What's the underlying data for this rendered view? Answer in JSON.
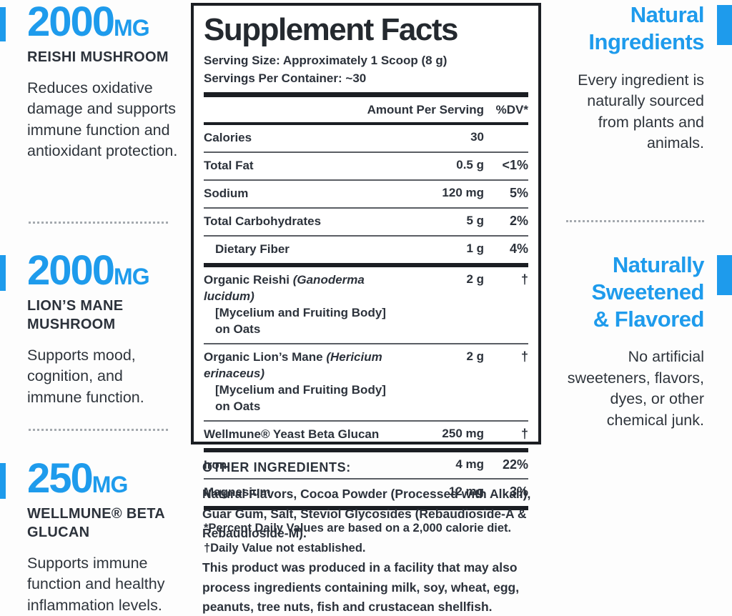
{
  "colors": {
    "accent_blue": "#1e9bec",
    "text_dark": "#2c323b",
    "panel_border": "#1b1e23"
  },
  "left_column": {
    "sections": [
      {
        "value": "2000",
        "unit": "MG",
        "title": "REISHI MUSHROOM",
        "body": "Reduces oxidative damage and supports immune function and antioxidant protection."
      },
      {
        "value": "2000",
        "unit": "MG",
        "title": "LION’S MANE MUSHROOM",
        "body": "Supports mood, cognition, and immune function."
      },
      {
        "value": "250",
        "unit": "MG",
        "title": "WELLMUNE® BETA GLUCAN",
        "body": "Supports immune function and healthy inflammation levels."
      }
    ]
  },
  "right_column": {
    "sections": [
      {
        "title": "Natural Ingredients",
        "body": "Every ingredient is naturally sourced from plants and animals."
      },
      {
        "title": "Naturally Sweetened & Flavored",
        "body": "No artificial sweeteners, flavors, dyes, or other chemical junk."
      }
    ]
  },
  "panel": {
    "title": "Supplement Facts",
    "serving_size": "Serving Size: Approximately 1 Scoop (8 g)",
    "servings_per_container": "Servings Per Container: ~30",
    "columns": {
      "amount": "Amount Per Serving",
      "dv": "%DV*"
    },
    "rows": [
      {
        "name": "Calories",
        "amount": "30",
        "dv": ""
      },
      {
        "name": "Total Fat",
        "amount": "0.5 g",
        "dv": "<1%"
      },
      {
        "name": "Sodium",
        "amount": "120 mg",
        "dv": "5%"
      },
      {
        "name": "Total Carbohydrates",
        "amount": "5 g",
        "dv": "2%"
      },
      {
        "name": "Dietary Fiber",
        "amount": "1 g",
        "dv": "4%"
      },
      {
        "name": "Organic Reishi",
        "latin": "(Ganoderma lucidum)",
        "sub": "[Mycelium and Fruiting Body] on Oats",
        "amount": "2 g",
        "dv": "†"
      },
      {
        "name": "Organic Lion’s Mane",
        "latin": "(Hericium erinaceus)",
        "sub": "[Mycelium and Fruiting Body] on Oats",
        "amount": "2 g",
        "dv": "†"
      },
      {
        "name": "Wellmune® Yeast Beta Glucan",
        "amount": "250 mg",
        "dv": "†"
      },
      {
        "name": "Iron",
        "amount": "4 mg",
        "dv": "22%"
      },
      {
        "name": "Magnesium",
        "amount": "12 mg",
        "dv": "3%"
      }
    ],
    "footnotes": [
      "*Percent Daily Values are based on a 2,000 calorie diet.",
      "†Daily Value not established."
    ]
  },
  "other_ingredients": {
    "heading": "OTHER INGREDIENTS:",
    "body": "Natural Flavors, Cocoa Powder (Processed with Alkali), Guar Gum, Salt, Steviol Glycosides (Rebaudioside-A & Rebaudioside-M).",
    "allergen": "This product was produced in a facility that may also process ingredients containing milk, soy, wheat, egg, peanuts, tree nuts, fish and crustacean shellfish."
  }
}
